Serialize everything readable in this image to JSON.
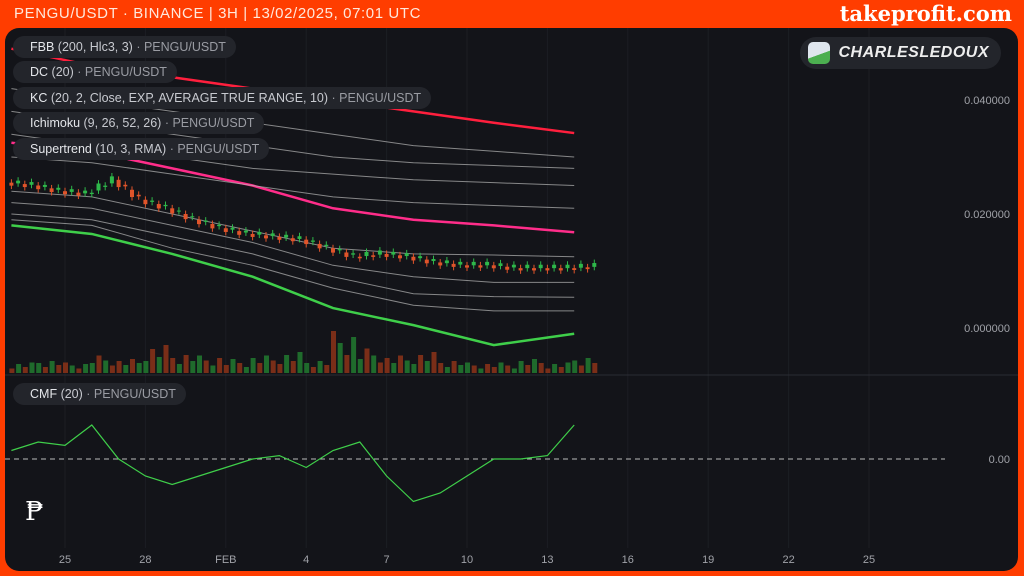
{
  "header": {
    "title": "PENGU/USDT · BINANCE | 3H | 13/02/2025, 07:01 UTC",
    "brand": "takeprofit.com"
  },
  "user": {
    "name": "CHARLESLEDOUX"
  },
  "legends": [
    {
      "name": "FBB",
      "params": "(200, Hlc3, 3)",
      "symbol": "· PENGU/USDT"
    },
    {
      "name": "DC",
      "params": "(20)",
      "symbol": "· PENGU/USDT"
    },
    {
      "name": "KC",
      "params": "(20, 2, Close, EXP, AVERAGE TRUE RANGE, 10)",
      "symbol": "· PENGU/USDT"
    },
    {
      "name": "Ichimoku",
      "params": "(9, 26, 52, 26)",
      "symbol": "· PENGU/USDT"
    },
    {
      "name": "Supertrend",
      "params": "(10, 3, RMA)",
      "symbol": "· PENGU/USDT"
    }
  ],
  "cmf_legend": {
    "name": "CMF",
    "params": "(20)",
    "symbol": "· PENGU/USDT"
  },
  "colors": {
    "frame": "#ff3d00",
    "up": "#2eb84a",
    "down": "#e0542a",
    "red_band": "#ff1f3d",
    "pink_band": "#ff2d8a",
    "green_band": "#3fcf4a",
    "gray_band": "#b8b8b8",
    "cmf": "#3fcf4a"
  },
  "chart_data": [
    {
      "type": "line",
      "title": "",
      "y_axis_ticks": [
        "0.040000",
        "0.020000",
        "0.000000"
      ],
      "ylim": [
        -0.002,
        0.05
      ],
      "x_ticks": [
        "25",
        "28",
        "FEB",
        "4",
        "7",
        "10",
        "13",
        "16",
        "19",
        "22",
        "25"
      ],
      "band_x": [
        "2025-01-23",
        "2025-01-26",
        "2025-01-29",
        "2025-02-01",
        "2025-02-04",
        "2025-02-07",
        "2025-02-10",
        "2025-02-13"
      ],
      "bands": [
        {
          "color": "#ff1f3d",
          "values": [
            0.049,
            0.046,
            0.044,
            0.042,
            0.04,
            0.038,
            0.036,
            0.0342
          ]
        },
        {
          "color": "#ff2d8a",
          "values": [
            0.0325,
            0.031,
            0.028,
            0.025,
            0.021,
            0.019,
            0.018,
            0.0168
          ]
        },
        {
          "color": "#3fcf4a",
          "values": [
            0.018,
            0.0165,
            0.013,
            0.009,
            0.0035,
            0.0005,
            -0.003,
            -0.001
          ]
        },
        {
          "color": "#b8b8b8",
          "values": [
            0.042,
            0.04,
            0.038,
            0.036,
            0.034,
            0.032,
            0.031,
            0.03
          ]
        },
        {
          "color": "#b8b8b8",
          "values": [
            0.038,
            0.036,
            0.034,
            0.032,
            0.03,
            0.029,
            0.0285,
            0.028
          ]
        },
        {
          "color": "#b8b8b8",
          "values": [
            0.034,
            0.032,
            0.03,
            0.028,
            0.027,
            0.026,
            0.0255,
            0.025
          ]
        },
        {
          "color": "#b8b8b8",
          "values": [
            0.03,
            0.029,
            0.027,
            0.025,
            0.023,
            0.022,
            0.0215,
            0.021
          ]
        },
        {
          "color": "#b8b8b8",
          "values": [
            0.024,
            0.023,
            0.02,
            0.017,
            0.014,
            0.013,
            0.0128,
            0.0125
          ]
        },
        {
          "color": "#b8b8b8",
          "values": [
            0.022,
            0.021,
            0.018,
            0.015,
            0.011,
            0.009,
            0.008,
            0.008
          ]
        },
        {
          "color": "#b8b8b8",
          "values": [
            0.02,
            0.019,
            0.016,
            0.013,
            0.009,
            0.006,
            0.0055,
            0.0054
          ]
        },
        {
          "color": "#b8b8b8",
          "values": [
            0.019,
            0.018,
            0.014,
            0.011,
            0.007,
            0.004,
            0.003,
            0.003
          ]
        }
      ],
      "price_x_start": "2025-01-23",
      "close": [
        0.025,
        0.024,
        0.0235,
        0.026,
        0.0225,
        0.021,
        0.019,
        0.0175,
        0.0165,
        0.016,
        0.0155,
        0.014,
        0.0125,
        0.013,
        0.0125,
        0.0115,
        0.011,
        0.011,
        0.0105,
        0.0105,
        0.0105,
        0.0108
      ],
      "volume": [
        3,
        4,
        3,
        5,
        4,
        8,
        6,
        5,
        4,
        5,
        6,
        4,
        12,
        7,
        5,
        6,
        4,
        3,
        3,
        4,
        3,
        5
      ]
    },
    {
      "type": "line",
      "title": "",
      "y_axis_ticks": [
        "0.00"
      ],
      "ylim": [
        -0.3,
        0.3
      ],
      "x_start": "2025-01-23",
      "values": [
        0.05,
        0.1,
        0.08,
        0.2,
        0.0,
        -0.1,
        -0.15,
        -0.1,
        -0.05,
        0.0,
        0.02,
        -0.05,
        0.05,
        0.1,
        -0.1,
        -0.25,
        -0.2,
        -0.1,
        0.0,
        0.0,
        0.02,
        0.2
      ]
    }
  ]
}
